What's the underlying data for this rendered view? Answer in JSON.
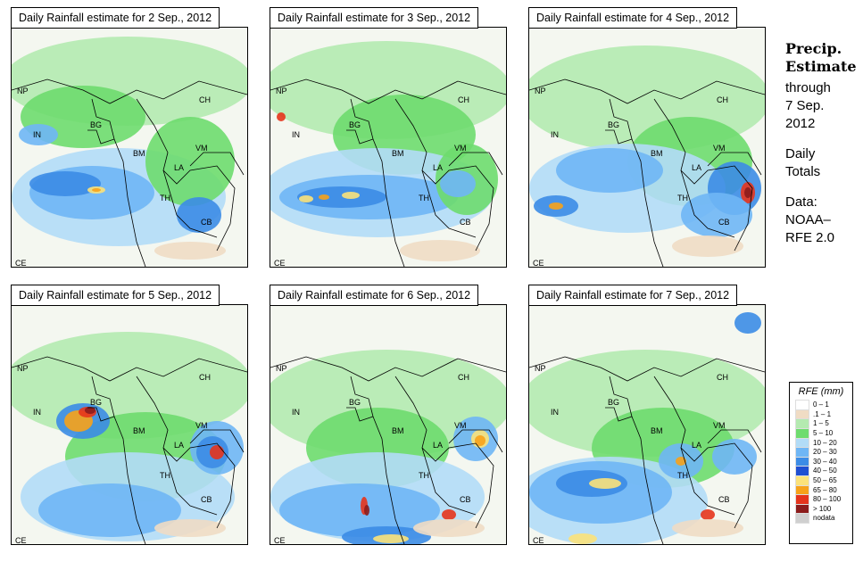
{
  "panels": [
    {
      "title": "Daily Rainfall estimate for  2 Sep., 2012"
    },
    {
      "title": "Daily Rainfall estimate for  3 Sep., 2012"
    },
    {
      "title": "Daily Rainfall estimate for  4 Sep., 2012"
    },
    {
      "title": "Daily Rainfall estimate for  5 Sep., 2012"
    },
    {
      "title": "Daily Rainfall estimate for  6 Sep., 2012"
    },
    {
      "title": "Daily Rainfall estimate for  7 Sep., 2012"
    }
  ],
  "country_labels": {
    "np": "NP",
    "ch": "CH",
    "in": "IN",
    "bg": "BG",
    "bm": "BM",
    "vm": "VM",
    "la": "LA",
    "th": "TH",
    "cb": "CB",
    "ce": "CE"
  },
  "sidebar": {
    "title_line1": "Precip.",
    "title_line2": "Estimate",
    "through": "through",
    "date_line1": "7 Sep.",
    "date_line2": "2012",
    "daily_line1": "Daily",
    "daily_line2": "Totals",
    "data_line1": "Data:",
    "data_line2": "NOAA–",
    "data_line3": "RFE 2.0"
  },
  "legend": {
    "title": "RFE (mm)",
    "items": [
      {
        "label": "0 – 1",
        "color": "#ffffff"
      },
      {
        "label": ".1 – 1",
        "color": "#f0dcc4"
      },
      {
        "label": "1 – 5",
        "color": "#b4eab0"
      },
      {
        "label": "5 – 10",
        "color": "#6edc6e"
      },
      {
        "label": "10 – 20",
        "color": "#b2dcf7"
      },
      {
        "label": "20 – 30",
        "color": "#6fb6f5"
      },
      {
        "label": "30 – 40",
        "color": "#3c8ce6"
      },
      {
        "label": "40 – 50",
        "color": "#1f4fd2"
      },
      {
        "label": "50 – 65",
        "color": "#fbe27a"
      },
      {
        "label": "65 – 80",
        "color": "#f7a21a"
      },
      {
        "label": "80 – 100",
        "color": "#e5341c"
      },
      {
        "label": "> 100",
        "color": "#8c1c1c"
      },
      {
        "label": "nodata",
        "color": "#cfcfcf"
      }
    ]
  }
}
